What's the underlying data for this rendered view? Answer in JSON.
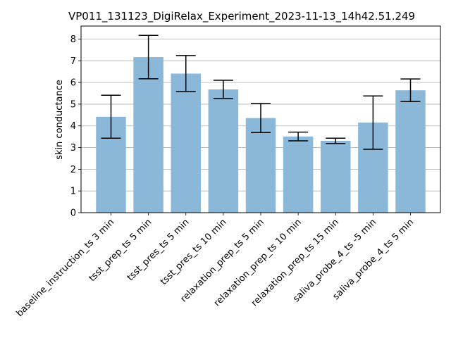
{
  "chart_data": {
    "type": "bar",
    "title": "VP011_131123_DigiRelax_Experiment_2023-11-13_14h42.51.249",
    "xlabel": "",
    "ylabel": "skin conductance",
    "ylim": [
      0,
      8.6
    ],
    "yticks": [
      0,
      1,
      2,
      3,
      4,
      5,
      6,
      7,
      8
    ],
    "grid": "horizontal",
    "bar_color": "#8bb8d9",
    "categories": [
      "baseline_instruction_ts 3 min",
      "tsst_prep_ts 5 min",
      "tsst_pres_ts 5 min",
      "tsst_pres_ts 10 min",
      "relaxation_prep_ts 5 min",
      "relaxation_prep_ts 10 min",
      "relaxation_prep_ts 15 min",
      "saliva_probe_4_ts -5 min",
      "saliva_probe_4_ts 5 min"
    ],
    "values": [
      4.42,
      7.17,
      6.41,
      5.68,
      4.36,
      3.51,
      3.31,
      4.15,
      5.64
    ],
    "errors": [
      0.99,
      1.0,
      0.83,
      0.42,
      0.67,
      0.2,
      0.12,
      1.23,
      0.52
    ]
  }
}
